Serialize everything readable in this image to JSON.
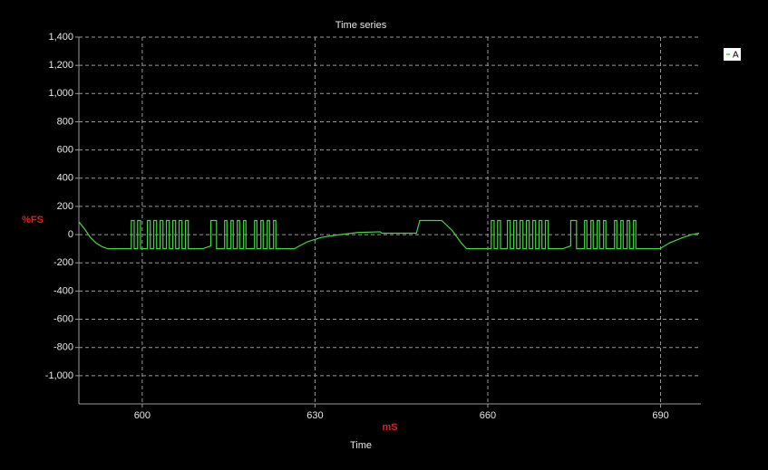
{
  "chart_data": {
    "type": "line",
    "title": "Time series",
    "x_label": "Time",
    "x_unit": "mS",
    "y_unit": "%FS",
    "xlim": [
      589,
      697
    ],
    "xticks": [
      600,
      630,
      660,
      690
    ],
    "ylim": [
      -1200,
      1400
    ],
    "yticks": [
      {
        "value": -1000,
        "label": "-1,000"
      },
      -800,
      -600,
      -400,
      -200,
      0,
      200,
      400,
      600,
      800,
      {
        "value": 1000,
        "label": "1,000"
      },
      {
        "value": 1200,
        "label": "1,200"
      },
      {
        "value": 1400,
        "label": "1,400"
      }
    ],
    "grid": true,
    "legend": "top-right",
    "x": [
      589,
      590,
      591,
      592,
      593,
      594,
      598.1,
      598.1,
      598.6,
      598.6,
      599.2,
      599.2,
      599.7,
      599.7,
      600.9,
      600.9,
      601.4,
      601.4,
      602.0,
      602.0,
      602.5,
      602.5,
      603.1,
      603.1,
      603.6,
      603.6,
      604.2,
      604.2,
      604.7,
      604.7,
      605.3,
      605.3,
      605.8,
      605.8,
      606.4,
      606.4,
      606.9,
      606.9,
      607.5,
      607.5,
      608.0,
      608.0,
      610.5,
      611.9,
      611.9,
      612.9,
      612.9,
      614.3,
      614.3,
      614.7,
      614.7,
      615.4,
      615.4,
      615.8,
      615.8,
      616.5,
      616.5,
      616.9,
      616.9,
      617.6,
      617.6,
      618.0,
      618.0,
      619.5,
      619.5,
      619.9,
      619.9,
      620.6,
      620.6,
      621.0,
      621.0,
      621.7,
      621.7,
      622.1,
      622.1,
      622.8,
      622.8,
      623.2,
      623.2,
      626.4,
      628.7,
      631.1,
      633.4,
      637.4,
      641.3,
      641.6,
      647.6,
      648.2,
      652.0,
      653.8,
      655.4,
      656.3,
      660.6,
      660.6,
      661.1,
      661.1,
      661.7,
      661.7,
      662.2,
      662.2,
      663.4,
      663.4,
      663.9,
      663.9,
      664.5,
      664.5,
      665.0,
      665.0,
      665.6,
      665.6,
      666.1,
      666.1,
      666.7,
      666.7,
      667.2,
      667.2,
      667.8,
      667.8,
      668.3,
      668.3,
      668.9,
      668.9,
      669.4,
      669.4,
      670.0,
      670.0,
      670.5,
      670.5,
      673.0,
      674.4,
      674.4,
      675.4,
      675.4,
      676.8,
      676.8,
      677.2,
      677.2,
      677.9,
      677.9,
      678.3,
      678.3,
      679.0,
      679.0,
      679.4,
      679.4,
      680.1,
      680.1,
      680.5,
      680.5,
      682.0,
      682.0,
      682.4,
      682.4,
      683.1,
      683.1,
      683.5,
      683.5,
      684.2,
      684.2,
      684.6,
      684.6,
      685.3,
      685.3,
      685.7,
      685.7,
      689.9,
      691.5,
      693.9,
      695.4,
      696.7
    ],
    "series": [
      {
        "name": "A",
        "color": "#3fd83f",
        "values": [
          90,
          40,
          -20,
          -60,
          -85,
          -100,
          -100,
          100,
          100,
          -100,
          -100,
          100,
          100,
          -100,
          -100,
          100,
          100,
          -100,
          -100,
          100,
          100,
          -100,
          -100,
          100,
          100,
          -100,
          -100,
          100,
          100,
          -100,
          -100,
          100,
          100,
          -100,
          -100,
          100,
          100,
          -100,
          -100,
          100,
          100,
          -100,
          -100,
          -80,
          100,
          100,
          -100,
          -100,
          100,
          100,
          -100,
          -100,
          100,
          100,
          -100,
          -100,
          100,
          100,
          -100,
          -100,
          100,
          100,
          -100,
          -100,
          100,
          100,
          -100,
          -100,
          100,
          100,
          -100,
          -100,
          100,
          100,
          -100,
          -100,
          100,
          100,
          -100,
          -100,
          -50,
          -20,
          -5,
          15,
          20,
          10,
          10,
          100,
          100,
          30,
          -60,
          -100,
          -100,
          100,
          100,
          -100,
          -100,
          100,
          100,
          -100,
          -100,
          100,
          100,
          -100,
          -100,
          100,
          100,
          -100,
          -100,
          100,
          100,
          -100,
          -100,
          100,
          100,
          -100,
          -100,
          100,
          100,
          -100,
          -100,
          100,
          100,
          -100,
          -100,
          100,
          100,
          -100,
          -100,
          -80,
          100,
          100,
          -100,
          -100,
          100,
          100,
          -100,
          -100,
          100,
          100,
          -100,
          -100,
          100,
          100,
          -100,
          -100,
          100,
          100,
          -100,
          -100,
          100,
          100,
          -100,
          -100,
          100,
          100,
          -100,
          -100,
          100,
          100,
          -100,
          -100,
          100,
          100,
          -100,
          -100,
          -60,
          -20,
          0,
          10
        ]
      }
    ]
  }
}
